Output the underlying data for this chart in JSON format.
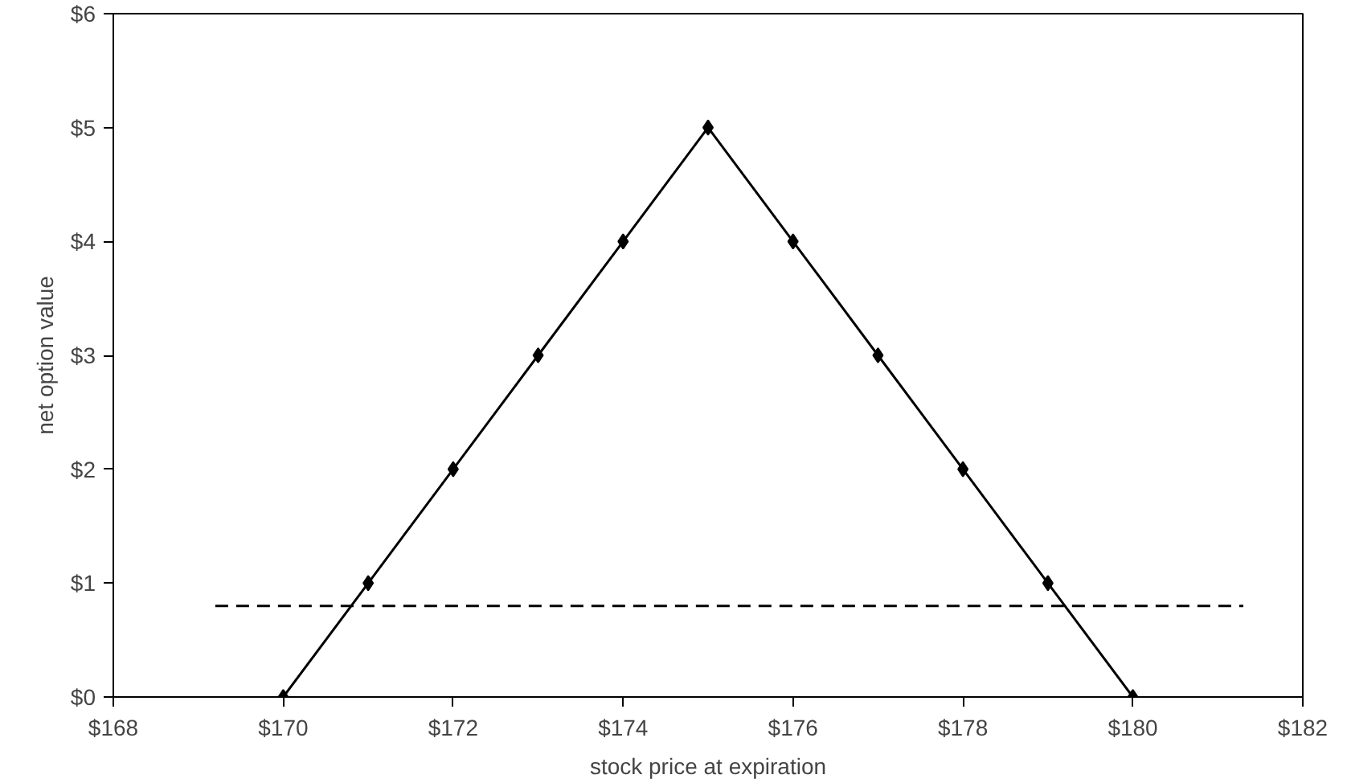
{
  "chart_data": {
    "type": "line",
    "xlabel": "stock price at expiration",
    "ylabel": "net option value",
    "x": [
      170,
      171,
      172,
      173,
      174,
      175,
      176,
      177,
      178,
      179,
      180
    ],
    "series": [
      {
        "color": "#000000",
        "values": [
          0,
          1,
          2,
          3,
          4,
          5,
          4,
          3,
          2,
          1,
          0
        ],
        "marker": "diamond",
        "line_style": "solid"
      },
      {
        "color": "#000000",
        "x": [
          169.2,
          181.3
        ],
        "values": [
          0.8,
          0.8
        ],
        "marker": "none",
        "line_style": "dashed"
      }
    ],
    "xlim": [
      168,
      182
    ],
    "ylim": [
      0,
      6
    ],
    "xticks": [
      {
        "value": 168,
        "label": "$168"
      },
      {
        "value": 170,
        "label": "$170"
      },
      {
        "value": 172,
        "label": "$172"
      },
      {
        "value": 174,
        "label": "$174"
      },
      {
        "value": 176,
        "label": "$176"
      },
      {
        "value": 178,
        "label": "$178"
      },
      {
        "value": 180,
        "label": "$180"
      },
      {
        "value": 182,
        "label": "$182"
      }
    ],
    "yticks": [
      {
        "value": 0,
        "label": "$0"
      },
      {
        "value": 1,
        "label": "$1"
      },
      {
        "value": 2,
        "label": "$2"
      },
      {
        "value": 3,
        "label": "$3"
      },
      {
        "value": 4,
        "label": "$4"
      },
      {
        "value": 5,
        "label": "$5"
      },
      {
        "value": 6,
        "label": "$6"
      }
    ],
    "grid": false
  }
}
